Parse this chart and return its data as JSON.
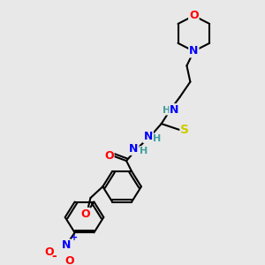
{
  "bg_color": "#e8e8e8",
  "atom_colors": {
    "C": "#000000",
    "N": "#0000ff",
    "O": "#ff0000",
    "S": "#cccc00",
    "H": "#40a0a0"
  },
  "bond_color": "#000000",
  "bond_width": 1.5,
  "figsize": [
    3.0,
    3.0
  ],
  "dpi": 100
}
